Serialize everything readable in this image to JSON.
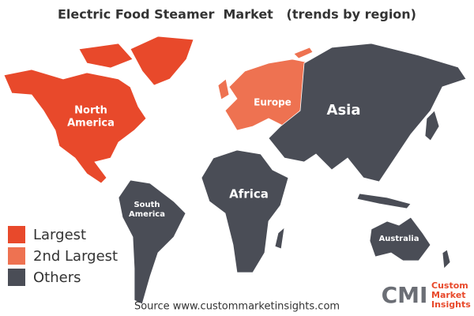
{
  "title": "Electric Food Steamer  Market   (trends by region)",
  "legend": [
    {
      "label": "Largest",
      "color": "#e8492b",
      "regions": [
        {
          "lines": [
            "North",
            "America"
          ]
        }
      ]
    },
    {
      "label": "2nd Largest",
      "color": "#ee7251",
      "regions": [
        {
          "lines": [
            "Europe"
          ]
        }
      ]
    },
    {
      "label": "Others",
      "color": "#4a4d56",
      "regions": [
        {
          "lines": [
            "Asia"
          ]
        },
        {
          "lines": [
            "Africa"
          ]
        },
        {
          "lines": [
            "South",
            "America"
          ]
        },
        {
          "lines": [
            "Australia"
          ]
        }
      ]
    }
  ],
  "source": "Source www.custommarketinsights.com",
  "logo": {
    "mark": "CMI",
    "lines": [
      "Custom",
      "Market",
      "Insights"
    ]
  }
}
